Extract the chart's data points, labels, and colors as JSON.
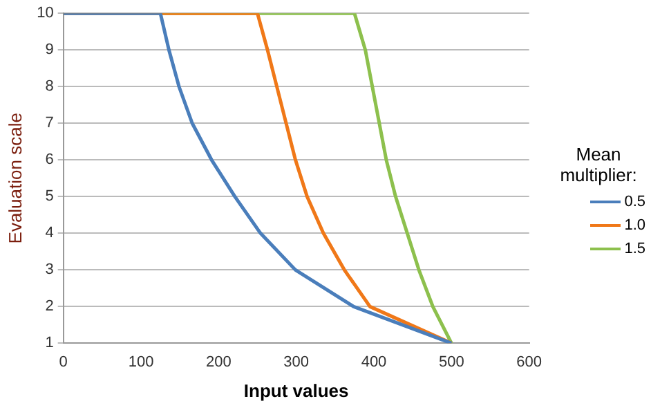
{
  "chart_data": {
    "type": "line",
    "xlabel": "Input values",
    "ylabel": "Evaluation scale",
    "legend_title": "Mean multiplier:",
    "xlim": [
      0,
      600
    ],
    "xticks": [
      0,
      100,
      200,
      300,
      400,
      500,
      600
    ],
    "ylim": [
      1,
      10
    ],
    "yticks": [
      1,
      2,
      3,
      4,
      5,
      6,
      7,
      8,
      9,
      10
    ],
    "grid": "y",
    "legend": "right",
    "marker": "none",
    "line_style": "solid",
    "series": [
      {
        "name": "0.5",
        "color": "#4a7ebb",
        "x": [
          0,
          125,
          136,
          149,
          166,
          191,
          221,
          254,
          299,
          374,
          500
        ],
        "values": [
          10,
          10,
          9,
          8,
          7,
          6,
          5,
          4,
          3,
          2,
          1
        ]
      },
      {
        "name": "1.0",
        "color": "#f07818",
        "x": [
          0,
          250,
          263,
          275,
          287,
          299,
          314,
          335,
          362,
          395,
          500
        ],
        "values": [
          10,
          10,
          9,
          8,
          7,
          6,
          5,
          4,
          3,
          2,
          1
        ]
      },
      {
        "name": "1.5",
        "color": "#8dc04d",
        "x": [
          0,
          375,
          389,
          398,
          407,
          416,
          428,
          443,
          458,
          476,
          500
        ],
        "values": [
          10,
          10,
          9,
          8,
          7,
          6,
          5,
          4,
          3,
          2,
          1
        ]
      }
    ]
  }
}
